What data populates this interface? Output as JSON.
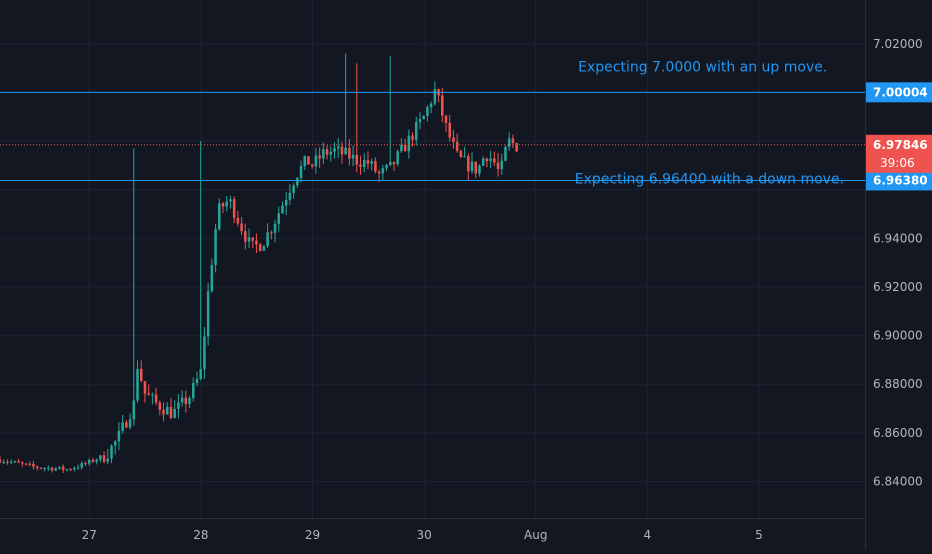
{
  "colors": {
    "background": "#131722",
    "grid": "#1e2230",
    "axis_line": "#2a2e39",
    "axis_text": "#b2b5be",
    "up": "#26a69a",
    "down": "#ef5350",
    "hline": "#2196f3",
    "annotation": "#2196f3",
    "price_line": "#ef5350"
  },
  "chart_data": {
    "type": "candlestick",
    "y_ticks": [
      "7.02000",
      "6.94000",
      "6.92000",
      "6.90000",
      "6.88000",
      "6.86000",
      "6.84000"
    ],
    "y_tick_values": [
      7.02,
      6.94,
      6.92,
      6.9,
      6.88,
      6.86,
      6.84
    ],
    "ylim": [
      6.825,
      7.038
    ],
    "x_ticks": [
      "27",
      "28",
      "29",
      "30",
      "Aug",
      "4",
      "5"
    ],
    "x_tick_positions": [
      0.8,
      1.8,
      2.8,
      3.8,
      4.8,
      5.8,
      6.8
    ],
    "xlim": [
      0.0,
      7.75
    ],
    "last_index": 4.63,
    "hlines": [
      {
        "value": 7.00004,
        "label": "7.00004",
        "color": "#2196f3"
      },
      {
        "value": 6.9638,
        "label": "6.96380",
        "color": "#2196f3"
      }
    ],
    "price_line": {
      "value": 6.97846,
      "label": "6.97846",
      "countdown": "39:06"
    },
    "annotations": [
      {
        "text": "Expecting 7.0000 with an up move.",
        "at_y": 7.0086,
        "at_x": 5.18
      },
      {
        "text": "Expecting 6.96400 with a down move.",
        "at_y": 6.9625,
        "at_x": 5.15
      }
    ],
    "path_days": [
      0.0,
      0.3,
      0.6,
      0.75,
      0.95,
      1.05,
      1.2,
      1.22,
      1.3,
      1.4,
      1.55,
      1.7,
      1.8,
      1.87,
      1.95,
      2.05,
      2.15,
      2.25,
      2.35,
      2.45,
      2.55,
      2.65,
      2.75,
      2.8,
      2.9,
      3.0,
      3.12,
      3.2,
      3.3,
      3.4,
      3.5,
      3.6,
      3.7,
      3.8,
      3.9,
      4.0,
      4.1,
      4.2,
      4.28,
      4.35,
      4.42,
      4.48,
      4.55,
      4.63
    ],
    "path_values": [
      6.849,
      6.846,
      6.845,
      6.847,
      6.851,
      6.857,
      6.872,
      6.89,
      6.876,
      6.872,
      6.868,
      6.875,
      6.885,
      6.92,
      6.951,
      6.956,
      6.946,
      6.936,
      6.938,
      6.946,
      6.956,
      6.966,
      6.972,
      6.97,
      6.975,
      6.976,
      6.974,
      6.972,
      6.971,
      6.966,
      6.969,
      6.976,
      6.983,
      6.99,
      7.001,
      6.985,
      6.973,
      6.97,
      6.968,
      6.975,
      6.972,
      6.966,
      6.98,
      6.978
    ]
  }
}
